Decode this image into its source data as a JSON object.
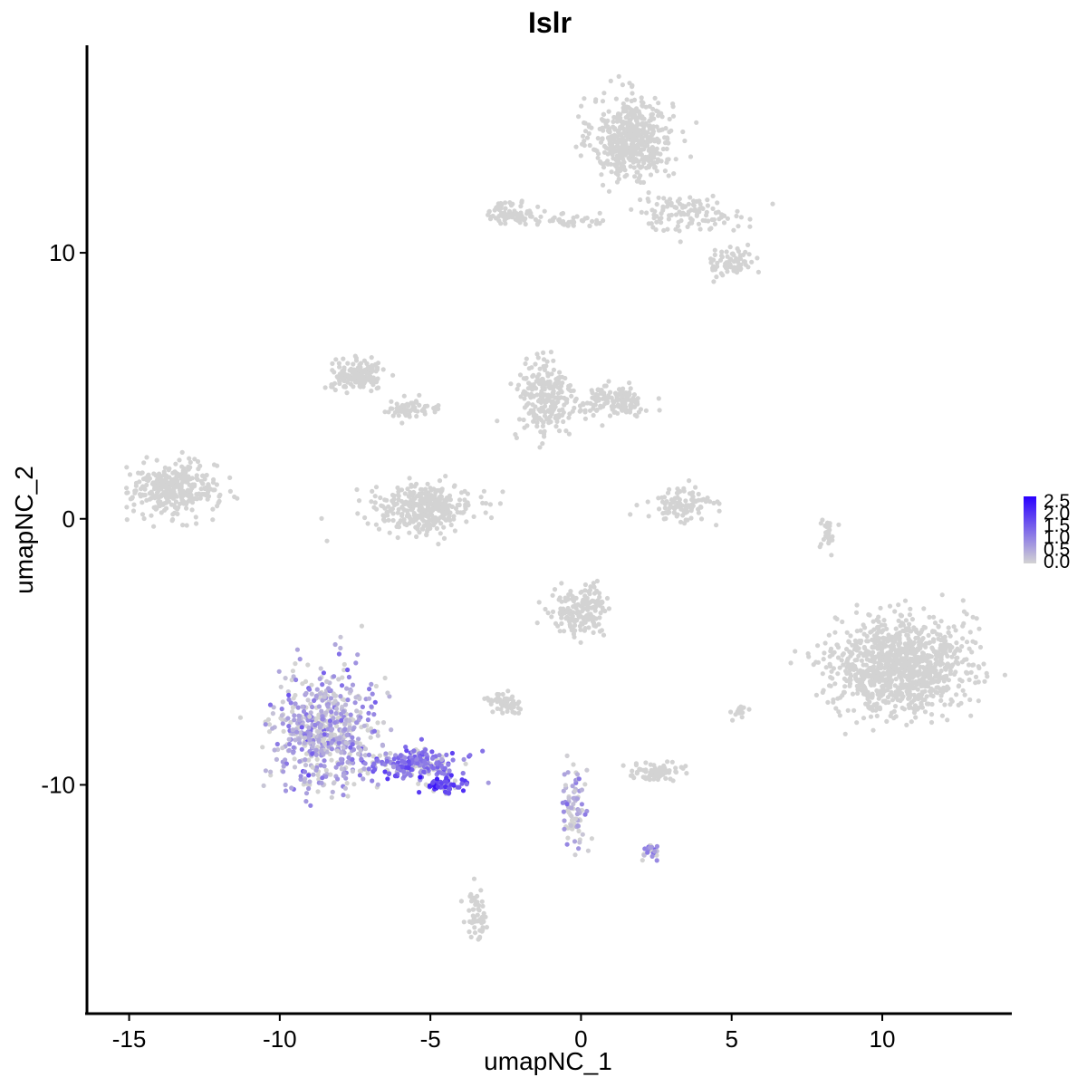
{
  "chart_data": {
    "type": "scatter",
    "title": "Islr",
    "xlabel": "umapNC_1",
    "ylabel": "umapNC_2",
    "xlim": [
      -16.4,
      14.3
    ],
    "ylim": [
      -18.6,
      17.8
    ],
    "x_ticks": [
      -15,
      -10,
      -5,
      0,
      5,
      10
    ],
    "x_tick_labels": [
      "-15",
      "-10",
      "-5",
      "0",
      "5",
      "10"
    ],
    "y_ticks": [
      -10,
      0,
      10
    ],
    "y_tick_labels": [
      "-10",
      "0",
      "10"
    ],
    "grid": false,
    "legend": {
      "position": "right",
      "type": "colorbar",
      "min": 0.0,
      "max": 2.5,
      "ticks": [
        "2.5",
        "2.0",
        "1.5",
        "1.0",
        "0.5",
        "0.0"
      ],
      "low_color": "#d3d3d3",
      "high_color": "#2a00ff"
    },
    "clusters": [
      {
        "cx": 1.7,
        "cy": 14.3,
        "rx": 1.2,
        "ry": 1.4,
        "n": 520,
        "expr": 0
      },
      {
        "cx": 3.5,
        "cy": 11.5,
        "rx": 1.8,
        "ry": 0.6,
        "n": 120,
        "expr": 0
      },
      {
        "cx": 5.0,
        "cy": 9.6,
        "rx": 0.7,
        "ry": 0.5,
        "n": 70,
        "expr": 0
      },
      {
        "cx": -2.3,
        "cy": 11.5,
        "rx": 0.7,
        "ry": 0.4,
        "n": 80,
        "expr": 0
      },
      {
        "cx": -0.5,
        "cy": 11.2,
        "rx": 1.2,
        "ry": 0.2,
        "n": 40,
        "expr": 0
      },
      {
        "cx": -13.5,
        "cy": 1.1,
        "rx": 1.3,
        "ry": 0.9,
        "n": 330,
        "expr": 0
      },
      {
        "cx": -7.4,
        "cy": 5.4,
        "rx": 0.8,
        "ry": 0.5,
        "n": 160,
        "expr": 0
      },
      {
        "cx": -5.7,
        "cy": 4.1,
        "rx": 0.9,
        "ry": 0.3,
        "n": 60,
        "expr": 0
      },
      {
        "cx": -5.2,
        "cy": 0.4,
        "rx": 1.5,
        "ry": 0.8,
        "n": 340,
        "expr": 0
      },
      {
        "cx": -1.2,
        "cy": 4.5,
        "rx": 0.9,
        "ry": 1.5,
        "n": 230,
        "expr": 0
      },
      {
        "cx": 1.0,
        "cy": 4.4,
        "rx": 1.1,
        "ry": 0.5,
        "n": 150,
        "expr": 0
      },
      {
        "cx": 3.3,
        "cy": 0.5,
        "rx": 1.0,
        "ry": 0.6,
        "n": 100,
        "expr": 0
      },
      {
        "cx": 10.6,
        "cy": -5.5,
        "rx": 2.0,
        "ry": 1.6,
        "n": 1050,
        "expr": 0
      },
      {
        "cx": 0.0,
        "cy": -3.5,
        "rx": 0.9,
        "ry": 0.8,
        "n": 180,
        "expr": 0
      },
      {
        "cx": -2.5,
        "cy": -6.9,
        "rx": 0.6,
        "ry": 0.3,
        "n": 55,
        "expr": 0
      },
      {
        "cx": 2.5,
        "cy": -9.5,
        "rx": 0.8,
        "ry": 0.3,
        "n": 70,
        "expr": 0
      },
      {
        "cx": -3.5,
        "cy": -14.8,
        "rx": 0.3,
        "ry": 0.9,
        "n": 55,
        "expr": 0
      },
      {
        "cx": -8.5,
        "cy": -8.0,
        "rx": 1.5,
        "ry": 2.0,
        "n": 620,
        "expr": 0.55
      },
      {
        "cx": -5.5,
        "cy": -9.2,
        "rx": 1.4,
        "ry": 0.5,
        "n": 240,
        "expr": 1.1
      },
      {
        "cx": -4.5,
        "cy": -10.0,
        "rx": 0.6,
        "ry": 0.3,
        "n": 70,
        "expr": 1.7
      },
      {
        "cx": -0.2,
        "cy": -11.0,
        "rx": 0.4,
        "ry": 1.3,
        "n": 80,
        "expr": 0.4
      },
      {
        "cx": 2.3,
        "cy": -12.5,
        "rx": 0.3,
        "ry": 0.3,
        "n": 25,
        "expr": 0.7
      },
      {
        "cx": 8.2,
        "cy": -0.5,
        "rx": 0.25,
        "ry": 0.6,
        "n": 25,
        "expr": 0
      },
      {
        "cx": 5.2,
        "cy": -7.3,
        "rx": 0.3,
        "ry": 0.3,
        "n": 15,
        "expr": 0
      }
    ]
  }
}
